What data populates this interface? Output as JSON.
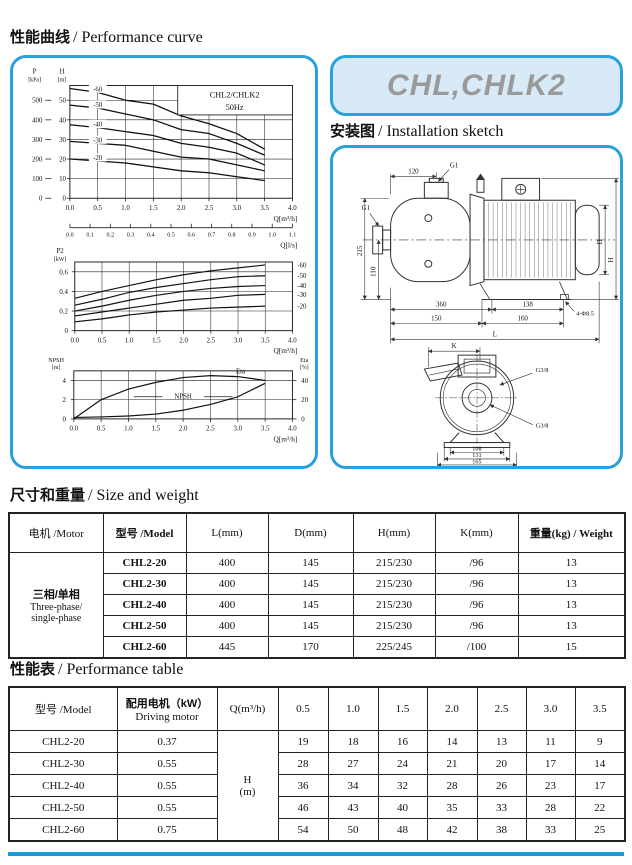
{
  "page": {
    "sections": {
      "performance_curve": {
        "zh": "性能曲线",
        "en": "/ Performance curve"
      },
      "installation_sketch": {
        "zh": "安装图",
        "en": "/ Installation sketch"
      },
      "size_weight": {
        "zh": "尺寸和重量",
        "en": "/ Size and weight"
      },
      "performance_table": {
        "zh": "性能表",
        "en": "/ Performance table"
      }
    },
    "brand": "CHL,CHLK2"
  },
  "colors": {
    "accent": "#29a1da",
    "panel_fill": "#d7eaf6",
    "brand_text": "#9a9a9a",
    "bottom_bar": "#1b9cd8"
  },
  "chart_data": [
    {
      "type": "line",
      "title": "CHL2/CHLK2",
      "subtitle": "50Hz",
      "y_axis_left": {
        "label": "P",
        "unit": "[kPa]",
        "ticks": [
          "500",
          "400",
          "300",
          "200",
          "100",
          "0"
        ]
      },
      "y_axis_right_inner": {
        "label": "H",
        "unit": "[m]",
        "ticks": [
          "50",
          "40",
          "30",
          "20",
          "10",
          "0"
        ]
      },
      "ylim": [
        0,
        57.5
      ],
      "xlim": [
        0,
        4
      ],
      "x_label": "Q[m³/h]",
      "x_ticks": [
        "0.0",
        "0.5",
        "1.0",
        "1.5",
        "2.0",
        "2.5",
        "3.0",
        "3.5",
        "4.0"
      ],
      "x2_label": "Q[l/s]",
      "x2_ticks": [
        "0.0",
        "0.1",
        "0.2",
        "0.3",
        "0.4",
        "0.5",
        "0.6",
        "0.7",
        "0.8",
        "0.9",
        "1.0",
        "1.1"
      ],
      "x": [
        0,
        0.5,
        1,
        1.5,
        2,
        2.5,
        3,
        3.5
      ],
      "series": [
        {
          "name": "-60",
          "values": [
            56,
            54,
            50,
            48,
            42,
            38,
            33,
            25
          ]
        },
        {
          "name": "-50",
          "values": [
            47.5,
            46,
            43,
            40,
            35,
            33,
            28,
            22
          ]
        },
        {
          "name": "-40",
          "values": [
            37.5,
            36,
            34,
            32,
            28,
            26,
            23,
            17
          ]
        },
        {
          "name": "-30",
          "values": [
            29,
            28,
            27,
            24,
            21,
            20,
            17,
            14
          ]
        },
        {
          "name": "-20",
          "values": [
            20,
            19,
            18,
            16,
            14,
            13,
            11,
            9
          ]
        }
      ]
    },
    {
      "type": "line",
      "y_axis": {
        "label": "P2",
        "unit": "[kW]",
        "ticks": [
          "0.6",
          "0.4",
          "0.2",
          "0"
        ],
        "tick_values": [
          0.6,
          0.4,
          0.2,
          0
        ]
      },
      "ylim": [
        0,
        0.7
      ],
      "xlim": [
        0,
        4
      ],
      "x_label": "Q[m³/h]",
      "x_ticks": [
        "0.0",
        "0.5",
        "1.0",
        "1.5",
        "2.0",
        "2.5",
        "3.0",
        "3.5",
        "4.0"
      ],
      "x": [
        0,
        0.5,
        1,
        1.5,
        2,
        2.5,
        3,
        3.5
      ],
      "series": [
        {
          "name": "-60",
          "values": [
            0.33,
            0.4,
            0.46,
            0.52,
            0.57,
            0.61,
            0.64,
            0.67
          ]
        },
        {
          "name": "-50",
          "values": [
            0.26,
            0.32,
            0.39,
            0.44,
            0.48,
            0.52,
            0.55,
            0.56
          ]
        },
        {
          "name": "-40",
          "values": [
            0.2,
            0.25,
            0.31,
            0.36,
            0.4,
            0.43,
            0.45,
            0.46
          ]
        },
        {
          "name": "-30",
          "values": [
            0.15,
            0.19,
            0.23,
            0.27,
            0.31,
            0.33,
            0.36,
            0.37
          ]
        },
        {
          "name": "-20",
          "values": [
            0.09,
            0.12,
            0.16,
            0.19,
            0.21,
            0.23,
            0.24,
            0.25
          ]
        }
      ]
    },
    {
      "type": "line",
      "y_axis_left": {
        "label": "NPSH",
        "unit": "[m]",
        "ticks": [
          "4",
          "2",
          "0"
        ],
        "tick_values": [
          4,
          2,
          0
        ]
      },
      "y_axis_right": {
        "label": "Eta",
        "unit": "[%]",
        "ticks": [
          "40",
          "20",
          "0"
        ],
        "tick_values": [
          40,
          20,
          0
        ]
      },
      "ylim_left": [
        0,
        5
      ],
      "ylim_right": [
        0,
        50
      ],
      "xlim": [
        0,
        4
      ],
      "x_label": "Q[m³/h]",
      "x_ticks": [
        "0.0",
        "0.5",
        "1.0",
        "1.5",
        "2.0",
        "2.5",
        "3.0",
        "3.5",
        "4.0"
      ],
      "x": [
        0,
        0.5,
        1,
        1.5,
        2,
        2.5,
        3,
        3.5
      ],
      "series": [
        {
          "name": "Eta",
          "axis": "right",
          "values": [
            0,
            20,
            31,
            38,
            43,
            45,
            44,
            40
          ]
        },
        {
          "name": "NPSH",
          "axis": "left",
          "values": [
            0.15,
            0.2,
            0.3,
            0.5,
            0.9,
            1.5,
            2.3,
            3.7
          ]
        }
      ]
    }
  ],
  "sketch": {
    "labels": {
      "d120": "120",
      "g1_top": "G1",
      "g1_left": "G1",
      "d215": "215",
      "d110": "110",
      "d360": "360",
      "d138": "138",
      "bolt": "4-Φ8.5",
      "d150": "150",
      "d160": "160",
      "L": "L",
      "D": "D",
      "H": "H",
      "K": "K",
      "g38_top": "G3/8",
      "g38_bot": "G3/8",
      "d108": "108",
      "d131": "131",
      "d165": "165"
    }
  },
  "size_table": {
    "headers": [
      "电机 /Motor",
      "型号 /Model",
      "L(mm)",
      "D(mm)",
      "H(mm)",
      "K(mm)",
      "重量(kg) / Weight"
    ],
    "motor_group": {
      "zh": "三相/单相",
      "en_lines": [
        "Three-phase/",
        "single-phase"
      ]
    },
    "rows": [
      {
        "model": "CHL2-20",
        "L": "400",
        "D": "145",
        "H": "215/230",
        "K": "/96",
        "weight": "13"
      },
      {
        "model": "CHL2-30",
        "L": "400",
        "D": "145",
        "H": "215/230",
        "K": "/96",
        "weight": "13"
      },
      {
        "model": "CHL2-40",
        "L": "400",
        "D": "145",
        "H": "215/230",
        "K": "/96",
        "weight": "13"
      },
      {
        "model": "CHL2-50",
        "L": "400",
        "D": "145",
        "H": "215/230",
        "K": "/96",
        "weight": "13"
      },
      {
        "model": "CHL2-60",
        "L": "445",
        "D": "170",
        "H": "225/245",
        "K": "/100",
        "weight": "15"
      }
    ]
  },
  "perf_table": {
    "headers": {
      "model": "型号 /Model",
      "motor_zh": "配用电机（kW）",
      "motor_en": "Driving motor",
      "q": "Q(m³/h)",
      "flows": [
        "0.5",
        "1.0",
        "1.5",
        "2.0",
        "2.5",
        "3.0",
        "3.5"
      ]
    },
    "merged_unit_lines": [
      "H",
      "(m)"
    ],
    "rows": [
      {
        "model": "CHL2-20",
        "motor": "0.37",
        "values": [
          "19",
          "18",
          "16",
          "14",
          "13",
          "11",
          "9"
        ]
      },
      {
        "model": "CHL2-30",
        "motor": "0.55",
        "values": [
          "28",
          "27",
          "24",
          "21",
          "20",
          "17",
          "14"
        ]
      },
      {
        "model": "CHL2-40",
        "motor": "0.55",
        "values": [
          "36",
          "34",
          "32",
          "28",
          "26",
          "23",
          "17"
        ]
      },
      {
        "model": "CHL2-50",
        "motor": "0.55",
        "values": [
          "46",
          "43",
          "40",
          "35",
          "33",
          "28",
          "22"
        ]
      },
      {
        "model": "CHL2-60",
        "motor": "0.75",
        "values": [
          "54",
          "50",
          "48",
          "42",
          "38",
          "33",
          "25"
        ]
      }
    ]
  }
}
